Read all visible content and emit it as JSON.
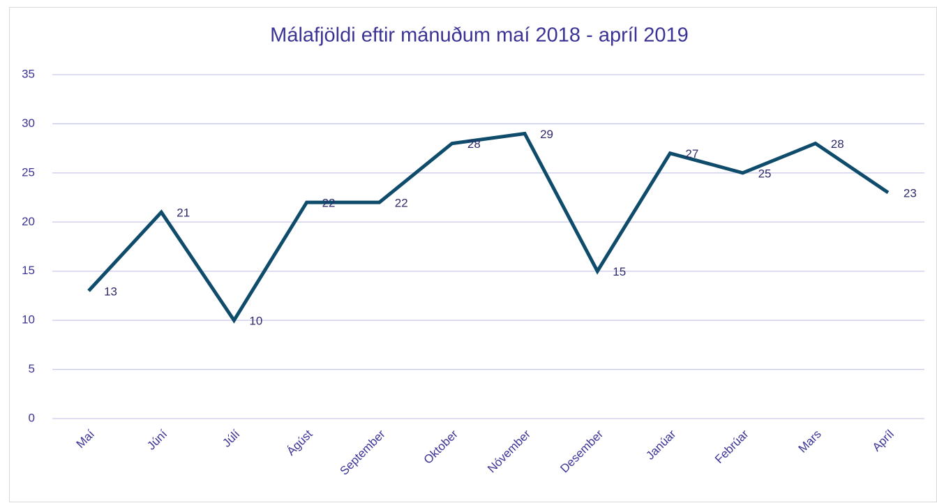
{
  "chart_data": {
    "type": "line",
    "title": "Málafjöldi eftir mánuðum maí 2018 - apríl 2019",
    "categories": [
      "Maí",
      "Júní",
      "Júlí",
      "Ágúst",
      "September",
      "Oktober",
      "Nóvember",
      "Desember",
      "Janúar",
      "Febrúar",
      "Mars",
      "Apríl"
    ],
    "values": [
      13,
      21,
      10,
      22,
      22,
      28,
      29,
      15,
      27,
      25,
      28,
      23
    ],
    "color": "#0f4c6b",
    "ylim": [
      0,
      35
    ],
    "yticks": [
      0,
      5,
      10,
      15,
      20,
      25,
      30,
      35
    ],
    "grid": true
  }
}
